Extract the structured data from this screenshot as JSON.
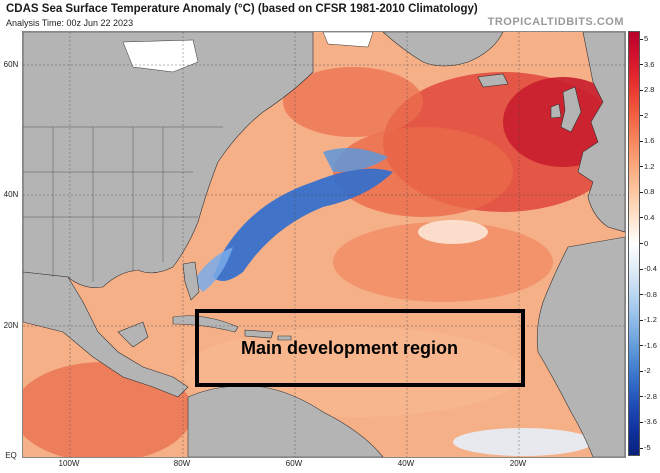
{
  "header": {
    "title": "CDAS Sea Surface Temperature Anomaly (°C) (based on CFSR 1981-2010 Climatology)",
    "subtitle": "Analysis Time: 00z Jun 22 2023",
    "brand": "TROPICALTIDBITS.COM"
  },
  "map": {
    "lat_labels": [
      "60N",
      "40N",
      "20N",
      "EQ"
    ],
    "lon_labels": [
      "100W",
      "80W",
      "60W",
      "40W",
      "20W"
    ],
    "region_label": "Main development region"
  },
  "colorbar": {
    "ticks": [
      "5",
      "3.6",
      "2.8",
      "2",
      "1.6",
      "1.2",
      "0.8",
      "0.4",
      "0",
      "-0.4",
      "-0.8",
      "-1.2",
      "-1.6",
      "-2",
      "-2.8",
      "-3.6",
      "-5"
    ],
    "colors": [
      "#b8002a",
      "#d4142e",
      "#e8322f",
      "#f05a3c",
      "#f7825a",
      "#fba57a",
      "#fdc6a0",
      "#fee3cc",
      "#ffffff",
      "#e0ecf8",
      "#b8d5f0",
      "#8cb9e6",
      "#5e98d9",
      "#3a74cc",
      "#2250b8",
      "#1232a0",
      "#08217c"
    ]
  },
  "colors": {
    "land": "#b4b4b4",
    "ice": "#ffffff",
    "warm": "#f4a074",
    "hot": "#d9262c",
    "cool": "#2a6fd1"
  }
}
